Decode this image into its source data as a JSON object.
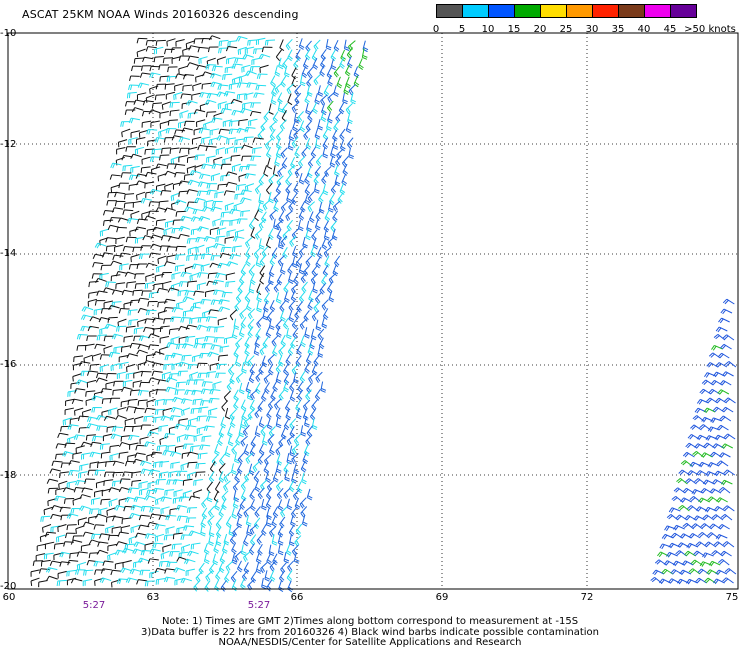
{
  "title": "ASCAT 25KM NOAA Winds 20160326 descending",
  "legend": {
    "colors": [
      "#555555",
      "#00ccff",
      "#0055ff",
      "#00aa00",
      "#ffdd00",
      "#ff9900",
      "#ff2200",
      "#7a3a1a",
      "#ee00ee",
      "#660099"
    ],
    "labels": [
      "0",
      "5",
      "10",
      "15",
      "20",
      "25",
      "30",
      "35",
      "40",
      "45",
      ">50 knots"
    ]
  },
  "y_axis_labels": [
    "-10",
    "-12",
    "-14",
    "-16",
    "-18",
    "-20"
  ],
  "x_axis_labels": [
    "60",
    "63",
    "66",
    "69",
    "72",
    "75"
  ],
  "times": [
    "5:27",
    "5:27"
  ],
  "notes": [
    "Note: 1) Times are GMT 2)Times along bottom correspond to measurement at -15S",
    "3)Data buffer is 22 hrs from 20160326 4) Black wind barbs indicate possible contamination",
    "NOAA/NESDIS/Center for Satellite Applications and Research"
  ]
}
